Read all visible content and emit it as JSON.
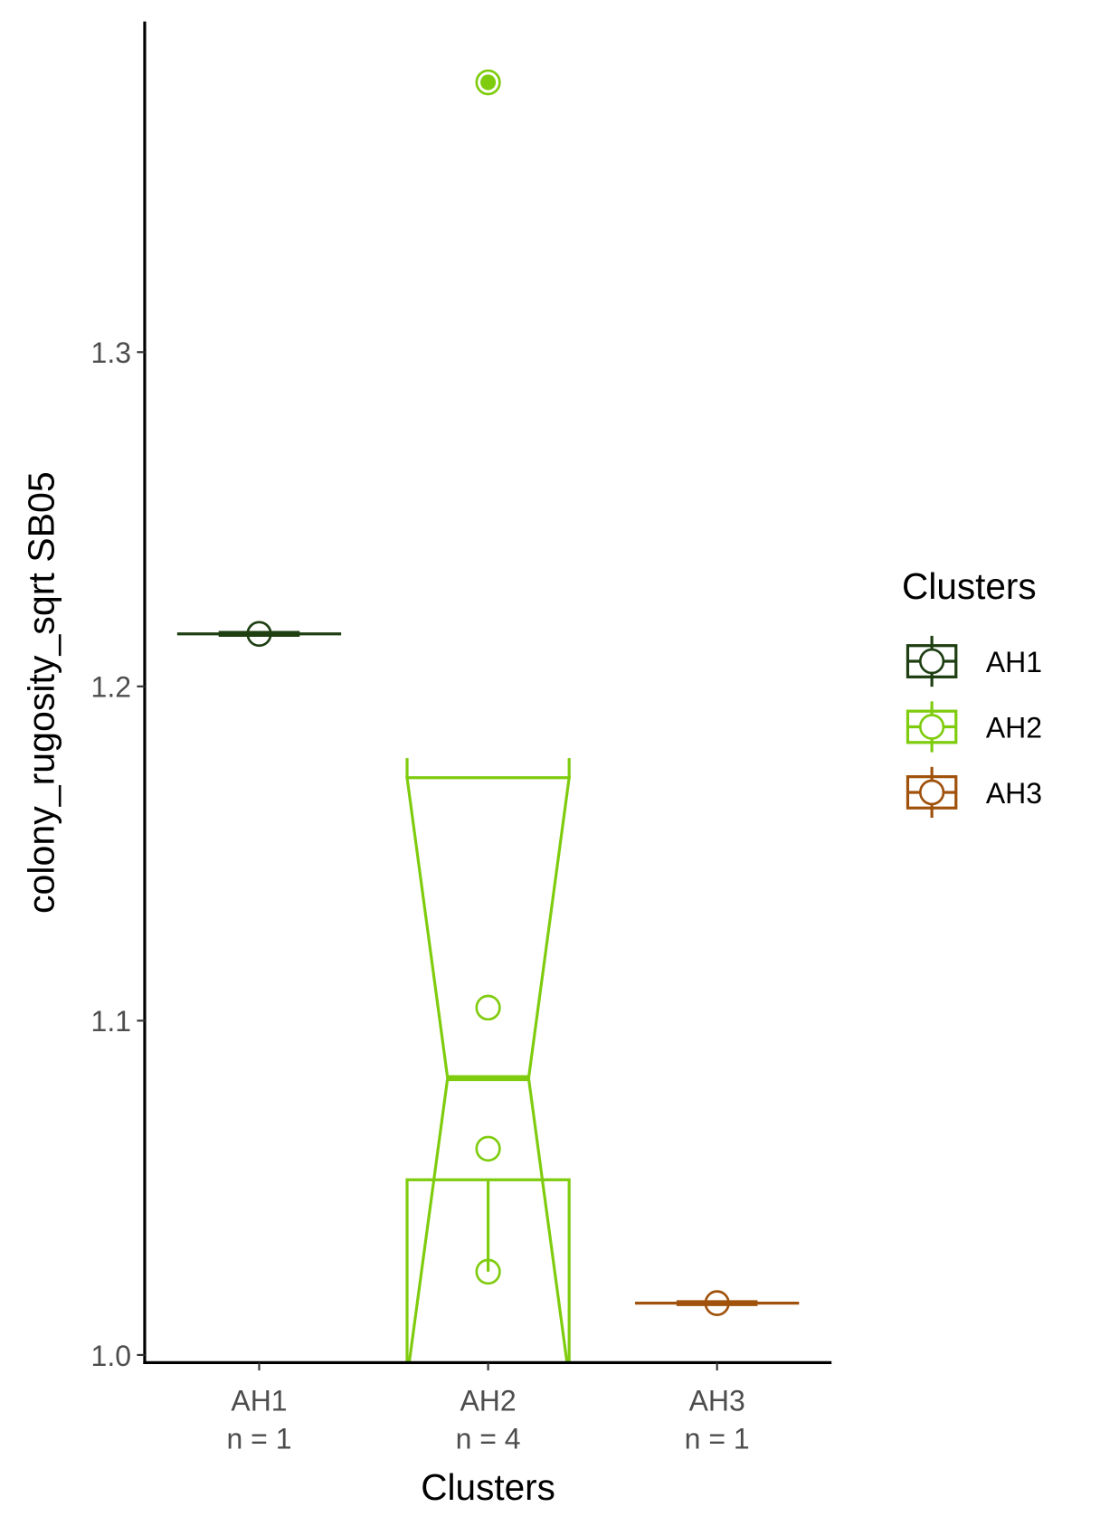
{
  "chart_data": {
    "type": "boxplot",
    "x_label": "Clusters",
    "y_label": "colony_rugosity_sqrt SB05",
    "categories": [
      "AH1",
      "AH2",
      "AH3"
    ],
    "n_labels": [
      "n = 1",
      "n = 4",
      "n = 1"
    ],
    "ylim": [
      0.9977,
      1.3989
    ],
    "yticks": [
      {
        "value": 1,
        "label": "1.0"
      },
      1.1,
      1.2,
      1.3
    ],
    "legend_title": "Clusters",
    "legend_position": "right",
    "series": [
      {
        "name": "AH1",
        "color": "#1e3f12",
        "values": [
          1.2157
        ],
        "median": 1.2157
      },
      {
        "name": "AH2",
        "color": "#7fcc0f",
        "values": [
          1.3807,
          1.1039,
          1.0617,
          1.0249
        ],
        "median": 1.0828,
        "notch": [
          0.993,
          1.1727
        ],
        "hinge": 1.0524,
        "whisker": 1.0249,
        "outliers": [
          1.3807
        ]
      },
      {
        "name": "AH3",
        "color": "#a0520c",
        "values": [
          1.0155
        ],
        "median": 1.0155
      }
    ]
  }
}
